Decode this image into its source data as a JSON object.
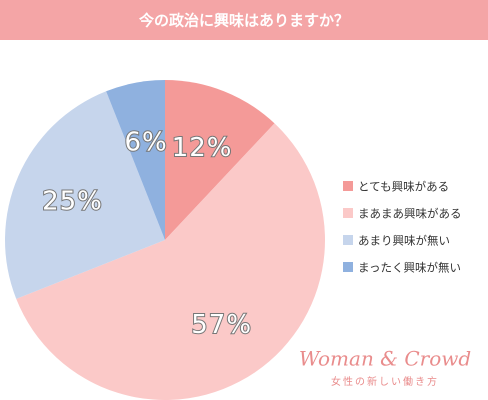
{
  "chart_data": {
    "type": "pie",
    "title": "今の政治に興味はありますか？",
    "categories": [
      "とても興味がある",
      "まあまあ興味がある",
      "あまり興味が無い",
      "まったく興味が無い"
    ],
    "values": [
      12,
      57,
      25,
      6
    ],
    "value_labels": [
      "12%",
      "57%",
      "25%",
      "6%"
    ],
    "colors": [
      "#f49a98",
      "#fbc9c8",
      "#c6d5ec",
      "#8fb1df"
    ],
    "legend": "right"
  },
  "watermark": {
    "brand": "Woman & Crowd",
    "tagline": "女性の新しい働き方"
  }
}
